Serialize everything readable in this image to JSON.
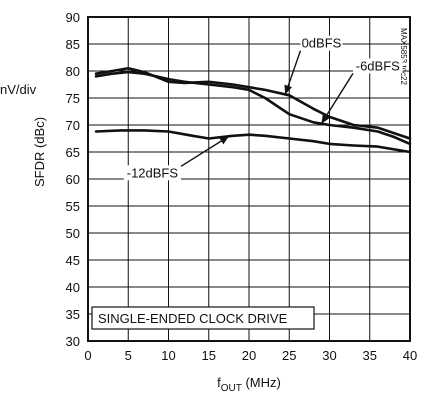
{
  "page": {
    "corner_fragment": "nV/div",
    "stamp": "MAX5853 toc22"
  },
  "chart_data": {
    "type": "line",
    "title": "",
    "xlabel": "f",
    "xlabel_sub": "OUT",
    "xlabel_unit": " (MHz)",
    "ylabel": "SFDR (dBc)",
    "xlim": [
      0,
      40
    ],
    "ylim": [
      30,
      90
    ],
    "xticks": [
      0,
      5,
      10,
      15,
      20,
      25,
      30,
      35,
      40
    ],
    "yticks": [
      30,
      35,
      40,
      45,
      50,
      55,
      60,
      65,
      70,
      75,
      80,
      85,
      90
    ],
    "grid": true,
    "series": [
      {
        "name": "0dBFS",
        "x": [
          1,
          3,
          5,
          7,
          10,
          12,
          15,
          18,
          20,
          22,
          25,
          28,
          30,
          33,
          36,
          38,
          40
        ],
        "y": [
          79.5,
          80.0,
          80.5,
          79.8,
          78.0,
          77.8,
          78.0,
          77.5,
          77.0,
          76.5,
          75.5,
          73.0,
          71.5,
          70.0,
          69.5,
          68.5,
          67.5
        ]
      },
      {
        "name": "-6dBFS",
        "x": [
          1,
          3,
          5,
          7,
          10,
          12,
          15,
          18,
          20,
          22,
          25,
          28,
          30,
          33,
          36,
          38,
          40
        ],
        "y": [
          79.0,
          79.5,
          79.8,
          79.5,
          78.5,
          78.0,
          77.5,
          77.0,
          76.5,
          75.0,
          72.0,
          70.5,
          70.0,
          69.5,
          68.8,
          67.8,
          66.5
        ]
      },
      {
        "name": "-12dBFS",
        "x": [
          1,
          4,
          7,
          10,
          13,
          15,
          18,
          20,
          22,
          25,
          28,
          30,
          33,
          36,
          40
        ],
        "y": [
          68.8,
          69.0,
          69.0,
          68.8,
          68.0,
          67.5,
          68.0,
          68.2,
          68.0,
          67.5,
          67.0,
          66.5,
          66.2,
          66.0,
          65.0
        ]
      }
    ],
    "annotations": [
      {
        "text": "0dBFS",
        "target_series": 0,
        "target_x": 24.5,
        "label_x": 29,
        "label_y": 84.5
      },
      {
        "text": "-6dBFS",
        "target_series": 1,
        "target_x": 29.0,
        "label_x": 36,
        "label_y": 80.3
      },
      {
        "text": "-12dBFS",
        "target_series": 2,
        "target_x": 17.5,
        "label_x": 8,
        "label_y": 60.5
      }
    ],
    "condition_label": "SINGLE-ENDED CLOCK DRIVE"
  }
}
